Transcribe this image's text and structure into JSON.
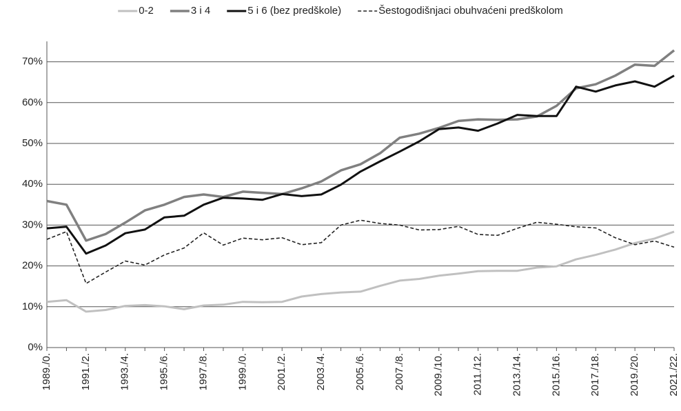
{
  "chart_data": {
    "type": "line",
    "categories": [
      "1989./0.",
      null,
      "1991./2.",
      null,
      "1993./4.",
      null,
      "1995./6.",
      null,
      "1997./8.",
      null,
      "1999./0.",
      null,
      "2001./2.",
      null,
      "2003./4.",
      null,
      "2005./6.",
      null,
      "2007./8.",
      null,
      "2009./10.",
      null,
      "2011./12.",
      null,
      "2013./14.",
      null,
      "2015./16.",
      null,
      "2017./18.",
      null,
      "2019./20.",
      null,
      "2021./22."
    ],
    "series": [
      {
        "name": "0-2",
        "color": "#c0c0c0",
        "values": [
          11.2,
          11.6,
          8.8,
          9.2,
          10.2,
          10.4,
          10.1,
          9.4,
          10.3,
          10.5,
          11.2,
          11.1,
          11.2,
          12.5,
          13.1,
          13.5,
          13.7,
          15.1,
          16.4,
          16.8,
          17.6,
          18.1,
          18.7,
          18.8,
          18.8,
          19.6,
          19.9,
          21.6,
          22.7,
          24.0,
          25.6,
          26.7,
          28.4
        ]
      },
      {
        "name": "3 i 4",
        "color": "#808080",
        "values": [
          35.9,
          35.0,
          26.2,
          27.8,
          30.6,
          33.6,
          35.0,
          36.9,
          37.5,
          36.9,
          38.2,
          37.9,
          37.6,
          39.0,
          40.7,
          43.4,
          44.9,
          47.6,
          51.4,
          52.4,
          53.8,
          55.5,
          55.9,
          55.8,
          55.9,
          56.6,
          59.2,
          63.5,
          64.5,
          66.6,
          69.3,
          69.0,
          72.8
        ]
      },
      {
        "name": "5 i 6 (bez predškole)",
        "color": "#111111",
        "values": [
          29.2,
          29.6,
          23.0,
          25.0,
          28.0,
          28.9,
          31.9,
          32.3,
          35.0,
          36.7,
          36.5,
          36.2,
          37.6,
          37.1,
          37.5,
          39.9,
          43.1,
          45.6,
          48.0,
          50.5,
          53.5,
          53.9,
          53.1,
          54.9,
          57.0,
          56.7,
          56.7,
          63.9,
          62.7,
          64.2,
          65.2,
          63.9,
          66.6
        ]
      },
      {
        "name": "Šestogodišnjaci obuhvaćeni predškolom",
        "color": "#222222",
        "dash": true,
        "values": [
          26.5,
          28.4,
          15.7,
          18.5,
          21.2,
          20.2,
          22.7,
          24.4,
          28.1,
          25.1,
          26.8,
          26.4,
          26.9,
          25.2,
          25.7,
          30.0,
          31.2,
          30.4,
          30.0,
          28.8,
          28.9,
          29.7,
          27.7,
          27.5,
          29.2,
          30.7,
          30.2,
          29.6,
          29.3,
          26.9,
          25.2,
          26.1,
          24.6
        ]
      }
    ],
    "ylim": [
      0,
      75
    ],
    "yticks": [
      {
        "value": 0,
        "label": "0%"
      },
      {
        "value": 10,
        "label": "10%"
      },
      {
        "value": 20,
        "label": "20%"
      },
      {
        "value": 30,
        "label": "30%"
      },
      {
        "value": 40,
        "label": "40%"
      },
      {
        "value": 50,
        "label": "50%"
      },
      {
        "value": 60,
        "label": "60%"
      },
      {
        "value": 70,
        "label": "70%"
      }
    ],
    "grid": true,
    "legend": "top"
  }
}
